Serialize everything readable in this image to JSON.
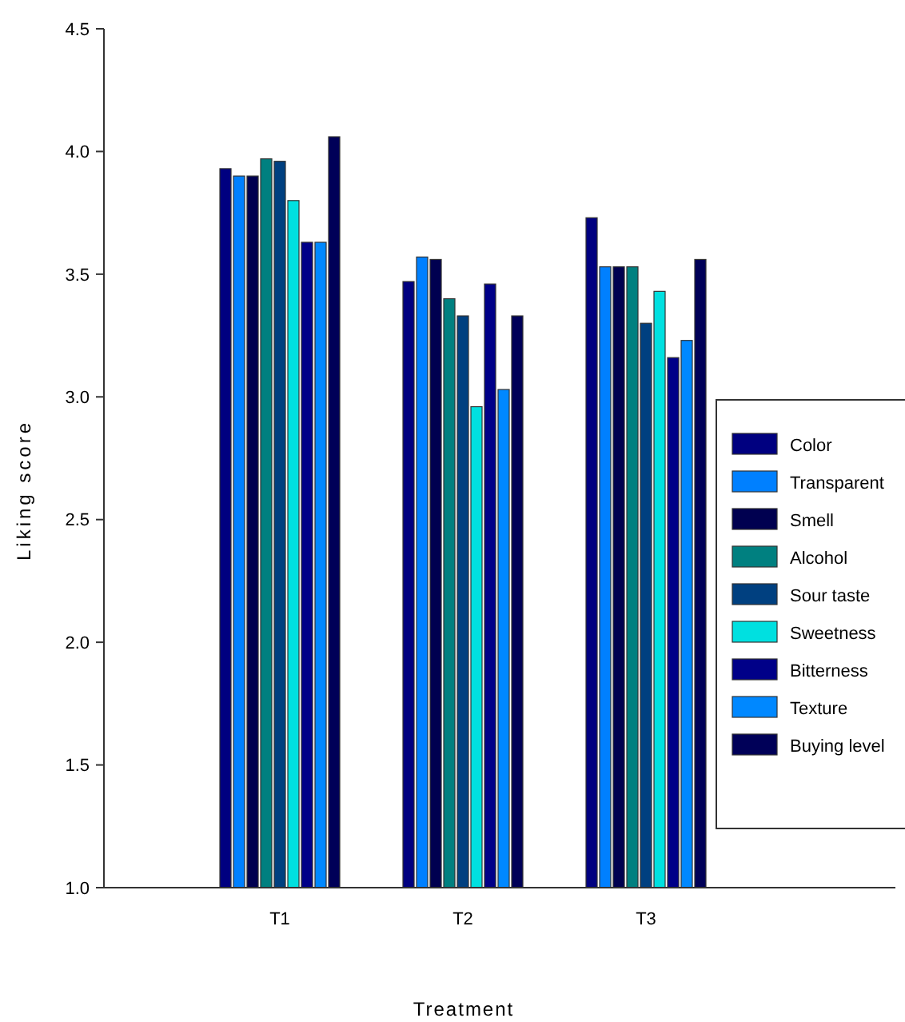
{
  "chart_data": {
    "type": "bar",
    "xlabel": "Treatment",
    "ylabel": "Liking score",
    "categories": [
      "T1",
      "T2",
      "T3"
    ],
    "ylim": [
      1.0,
      4.5
    ],
    "yticks": [
      {
        "value": 1,
        "label": "1.0"
      },
      {
        "value": 1.5,
        "label": "1.5"
      },
      {
        "value": 2,
        "label": "2.0"
      },
      {
        "value": 2.5,
        "label": "2.5"
      },
      {
        "value": 3,
        "label": "3.0"
      },
      {
        "value": 3.5,
        "label": "3.5"
      },
      {
        "value": 4,
        "label": "4.0"
      },
      {
        "value": 4.5,
        "label": "4.5"
      }
    ],
    "grid": false,
    "legend": "right",
    "series": [
      {
        "name": "Color",
        "color": "#000080",
        "values": [
          3.93,
          3.47,
          3.73
        ]
      },
      {
        "name": "Transparent",
        "color": "#0080ff",
        "values": [
          3.9,
          3.57,
          3.53
        ]
      },
      {
        "name": "Smell",
        "color": "#000050",
        "values": [
          3.9,
          3.56,
          3.53
        ]
      },
      {
        "name": "Alcohol",
        "color": "#008080",
        "values": [
          3.97,
          3.4,
          3.53
        ]
      },
      {
        "name": "Sour taste",
        "color": "#004080",
        "values": [
          3.96,
          3.33,
          3.3
        ]
      },
      {
        "name": "Sweetness",
        "color": "#00e0e0",
        "values": [
          3.8,
          2.96,
          3.43
        ]
      },
      {
        "name": "Bitterness",
        "color": "#000088",
        "values": [
          3.63,
          3.46,
          3.16
        ]
      },
      {
        "name": "Texture",
        "color": "#0088ff",
        "values": [
          3.63,
          3.03,
          3.23
        ]
      },
      {
        "name": "Buying level",
        "color": "#000058",
        "values": [
          4.06,
          3.33,
          3.56
        ]
      }
    ]
  }
}
